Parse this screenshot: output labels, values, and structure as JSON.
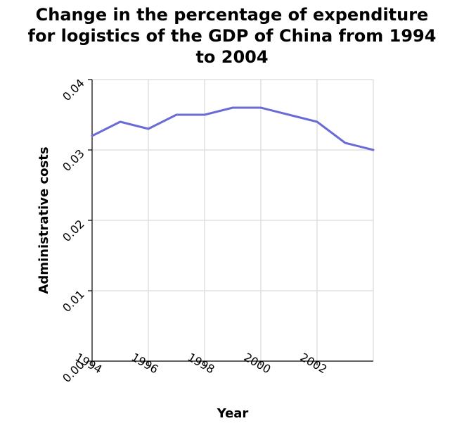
{
  "chart_data": {
    "type": "line",
    "title_lines": [
      "Change in the percentage of expenditure",
      "for logistics of the GDP of China from 1994",
      "to 2004"
    ],
    "xlabel": "Year",
    "ylabel": "Administrative costs",
    "xlim": [
      1994,
      2004
    ],
    "ylim": [
      0,
      0.04
    ],
    "x_ticks": [
      1994,
      1996,
      1998,
      2000,
      2002
    ],
    "x_tick_labels": [
      "1994",
      "1996",
      "1998",
      "2000",
      "2002"
    ],
    "y_ticks": [
      0,
      0.01,
      0.02,
      0.03,
      0.04
    ],
    "y_tick_labels": [
      "0.00",
      "0.01",
      "0.02",
      "0.03",
      "0.04"
    ],
    "grid": true,
    "line_color": "#6b6bd6",
    "series": [
      {
        "x": [
          1994,
          1995,
          1996,
          1997,
          1998,
          1999,
          2000,
          2001,
          2002,
          2003,
          2004
        ],
        "values": [
          0.032,
          0.034,
          0.033,
          0.035,
          0.035,
          0.036,
          0.036,
          0.035,
          0.034,
          0.031,
          0.03
        ]
      }
    ]
  }
}
